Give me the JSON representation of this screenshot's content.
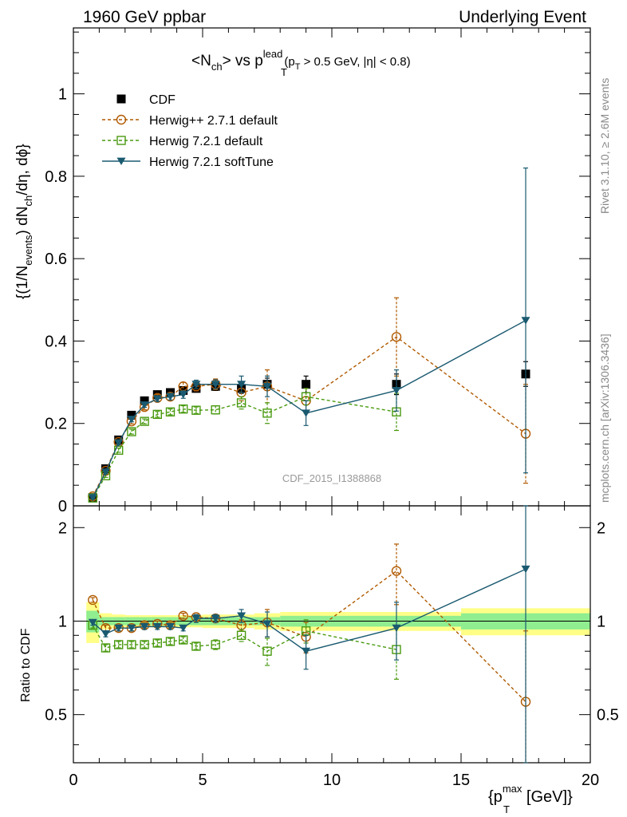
{
  "header": {
    "left": "1960 GeV ppbar",
    "right": "Underlying Event"
  },
  "side_labels": {
    "rivet": "Rivet 3.1.10, ≥ 2.6M events",
    "mcplots": "mcplots.cern.ch [arXiv:1306.3436]"
  },
  "chart_data": [
    {
      "type": "scatter",
      "panel": "main",
      "title_parts": {
        "pre": "<N",
        "sub1": "ch",
        "mid": "> vs p",
        "sub2": "T",
        "sup2": "lead",
        "cut_pre": "(p",
        "cut_sub": "T",
        "cut_post": " > 0.5 GeV, |η| < 0.8)"
      },
      "ylabel_parts": {
        "a": "{(1/N",
        "a_sub": "events",
        "b": ") dN",
        "b_sub": "ch",
        "c": "/dη, dϕ}"
      },
      "watermark": "CDF_2015_I1388868",
      "xlim": [
        0,
        20
      ],
      "ylim": [
        0,
        1.16
      ],
      "yticks": [
        0,
        0.2,
        0.4,
        0.6,
        0.8,
        1
      ],
      "ytick_labels": [
        "0",
        "0.2",
        "0.4",
        "0.6",
        "0.8",
        "1"
      ],
      "legend_position": "top-left",
      "x": [
        0.75,
        1.25,
        1.75,
        2.25,
        2.75,
        3.25,
        3.75,
        4.25,
        4.75,
        5.5,
        6.5,
        7.5,
        9.0,
        12.5,
        17.5
      ],
      "series": [
        {
          "name": "CDF",
          "color": "#000000",
          "marker": "square-filled",
          "line": "none",
          "values": [
            0.02,
            0.09,
            0.16,
            0.22,
            0.255,
            0.27,
            0.275,
            0.28,
            0.285,
            0.29,
            0.285,
            0.295,
            0.295,
            0.295,
            0.32
          ],
          "errors": [
            0.003,
            0.004,
            0.005,
            0.006,
            0.007,
            0.008,
            0.008,
            0.008,
            0.009,
            0.01,
            0.012,
            0.015,
            0.02,
            0.025,
            0.03
          ]
        },
        {
          "name": "Herwig++ 2.7.1 default",
          "color": "#b05a00",
          "marker": "circle-open",
          "line": "dashed",
          "values": [
            0.023,
            0.085,
            0.155,
            0.205,
            0.24,
            0.262,
            0.265,
            0.29,
            0.29,
            0.295,
            0.275,
            0.29,
            0.255,
            0.41,
            0.175
          ],
          "errors": [
            0.003,
            0.004,
            0.005,
            0.006,
            0.007,
            0.008,
            0.009,
            0.01,
            0.011,
            0.013,
            0.02,
            0.04,
            0.03,
            0.095,
            0.12
          ]
        },
        {
          "name": "Herwig 7.2.1 default",
          "color": "#4a9a10",
          "marker": "square-open",
          "line": "dashed",
          "values": [
            0.019,
            0.073,
            0.135,
            0.18,
            0.205,
            0.222,
            0.228,
            0.235,
            0.232,
            0.233,
            0.25,
            0.225,
            0.265,
            0.228,
            null
          ],
          "errors": [
            0.003,
            0.004,
            0.005,
            0.006,
            0.006,
            0.007,
            0.007,
            0.008,
            0.008,
            0.01,
            0.015,
            0.025,
            0.02,
            0.045,
            null
          ]
        },
        {
          "name": "Herwig 7.2.1 softTune",
          "color": "#1a5a70",
          "marker": "triangle-down-filled",
          "line": "solid",
          "values": [
            0.02,
            0.082,
            0.153,
            0.21,
            0.245,
            0.26,
            0.265,
            0.27,
            0.295,
            0.295,
            0.295,
            0.29,
            0.225,
            0.28,
            0.45
          ],
          "errors": [
            0.003,
            0.004,
            0.005,
            0.006,
            0.006,
            0.007,
            0.008,
            0.009,
            0.01,
            0.011,
            0.02,
            0.025,
            0.03,
            0.05,
            0.37
          ]
        }
      ]
    },
    {
      "type": "scatter",
      "panel": "ratio",
      "ylabel": "Ratio to CDF",
      "xlabel_parts": {
        "pre": "{p",
        "sub": "T",
        "sup": "max",
        "post": " [GeV]}"
      },
      "xlim": [
        0,
        20
      ],
      "ylim": [
        0.35,
        2.35
      ],
      "xticks": [
        0,
        5,
        10,
        15,
        20
      ],
      "xtick_labels": [
        "0",
        "5",
        "10",
        "15",
        "20"
      ],
      "yticks": [
        0.5,
        1,
        2
      ],
      "ytick_labels": [
        "0.5",
        "1",
        "2"
      ],
      "bands": {
        "x_edges": [
          0.5,
          1.0,
          1.5,
          2.0,
          2.5,
          3.0,
          3.5,
          4.0,
          4.5,
          5.0,
          6.0,
          7.0,
          8.0,
          10.0,
          15.0,
          20.0
        ],
        "stat_sys": [
          0.15,
          0.06,
          0.05,
          0.045,
          0.045,
          0.045,
          0.045,
          0.045,
          0.045,
          0.05,
          0.05,
          0.06,
          0.07,
          0.07,
          0.1
        ],
        "stat": [
          0.08,
          0.03,
          0.03,
          0.03,
          0.03,
          0.03,
          0.03,
          0.03,
          0.03,
          0.03,
          0.03,
          0.03,
          0.04,
          0.04,
          0.06
        ],
        "stat_sys_color": "#ffff88",
        "stat_color": "#90ee90"
      },
      "x": [
        0.75,
        1.25,
        1.75,
        2.25,
        2.75,
        3.25,
        3.75,
        4.25,
        4.75,
        5.5,
        6.5,
        7.5,
        9.0,
        12.5,
        17.5
      ],
      "series": [
        {
          "name": "Herwig++ 2.7.1 default",
          "color": "#b05a00",
          "marker": "circle-open",
          "line": "dashed",
          "values": [
            1.17,
            0.95,
            0.95,
            0.95,
            0.97,
            0.98,
            0.97,
            1.04,
            1.03,
            1.02,
            0.97,
            0.99,
            0.89,
            1.45,
            0.55
          ],
          "errors": [
            0.02,
            0.02,
            0.02,
            0.02,
            0.02,
            0.02,
            0.02,
            0.02,
            0.02,
            0.03,
            0.04,
            0.1,
            0.1,
            0.32,
            0.38
          ]
        },
        {
          "name": "Herwig 7.2.1 default",
          "color": "#4a9a10",
          "marker": "square-open",
          "line": "dashed",
          "values": [
            0.97,
            0.82,
            0.84,
            0.84,
            0.84,
            0.85,
            0.86,
            0.87,
            0.83,
            0.84,
            0.9,
            0.8,
            0.93,
            0.81,
            null
          ],
          "errors": [
            0.02,
            0.02,
            0.02,
            0.02,
            0.02,
            0.02,
            0.02,
            0.02,
            0.02,
            0.03,
            0.04,
            0.08,
            0.08,
            0.16,
            null
          ]
        },
        {
          "name": "Herwig 7.2.1 softTune",
          "color": "#1a5a70",
          "marker": "triangle-down-filled",
          "line": "solid",
          "values": [
            0.99,
            0.91,
            0.95,
            0.95,
            0.96,
            0.96,
            0.96,
            0.95,
            1.02,
            1.02,
            1.04,
            0.98,
            0.8,
            0.95,
            1.47
          ],
          "errors": [
            0.02,
            0.02,
            0.02,
            0.02,
            0.02,
            0.02,
            0.02,
            0.02,
            0.03,
            0.03,
            0.05,
            0.09,
            0.1,
            0.2,
            1.2
          ]
        }
      ]
    }
  ]
}
